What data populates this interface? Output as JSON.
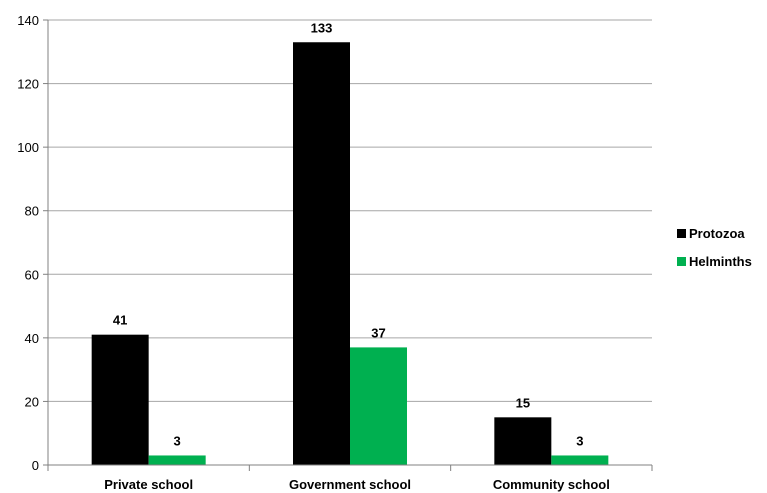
{
  "chart_data": {
    "type": "bar",
    "title": "",
    "xlabel": "",
    "ylabel": "",
    "categories": [
      "Private school",
      "Government school",
      "Community school"
    ],
    "series": [
      {
        "name": "Protozoa",
        "color": "#000000",
        "values": [
          41,
          133,
          15
        ]
      },
      {
        "name": "Helminths",
        "color": "#00b050",
        "values": [
          3,
          37,
          3
        ]
      }
    ],
    "ylim": [
      0,
      140
    ],
    "yticks": [
      0,
      20,
      40,
      60,
      80,
      100,
      120,
      140
    ],
    "grid": true,
    "legend": "right"
  }
}
